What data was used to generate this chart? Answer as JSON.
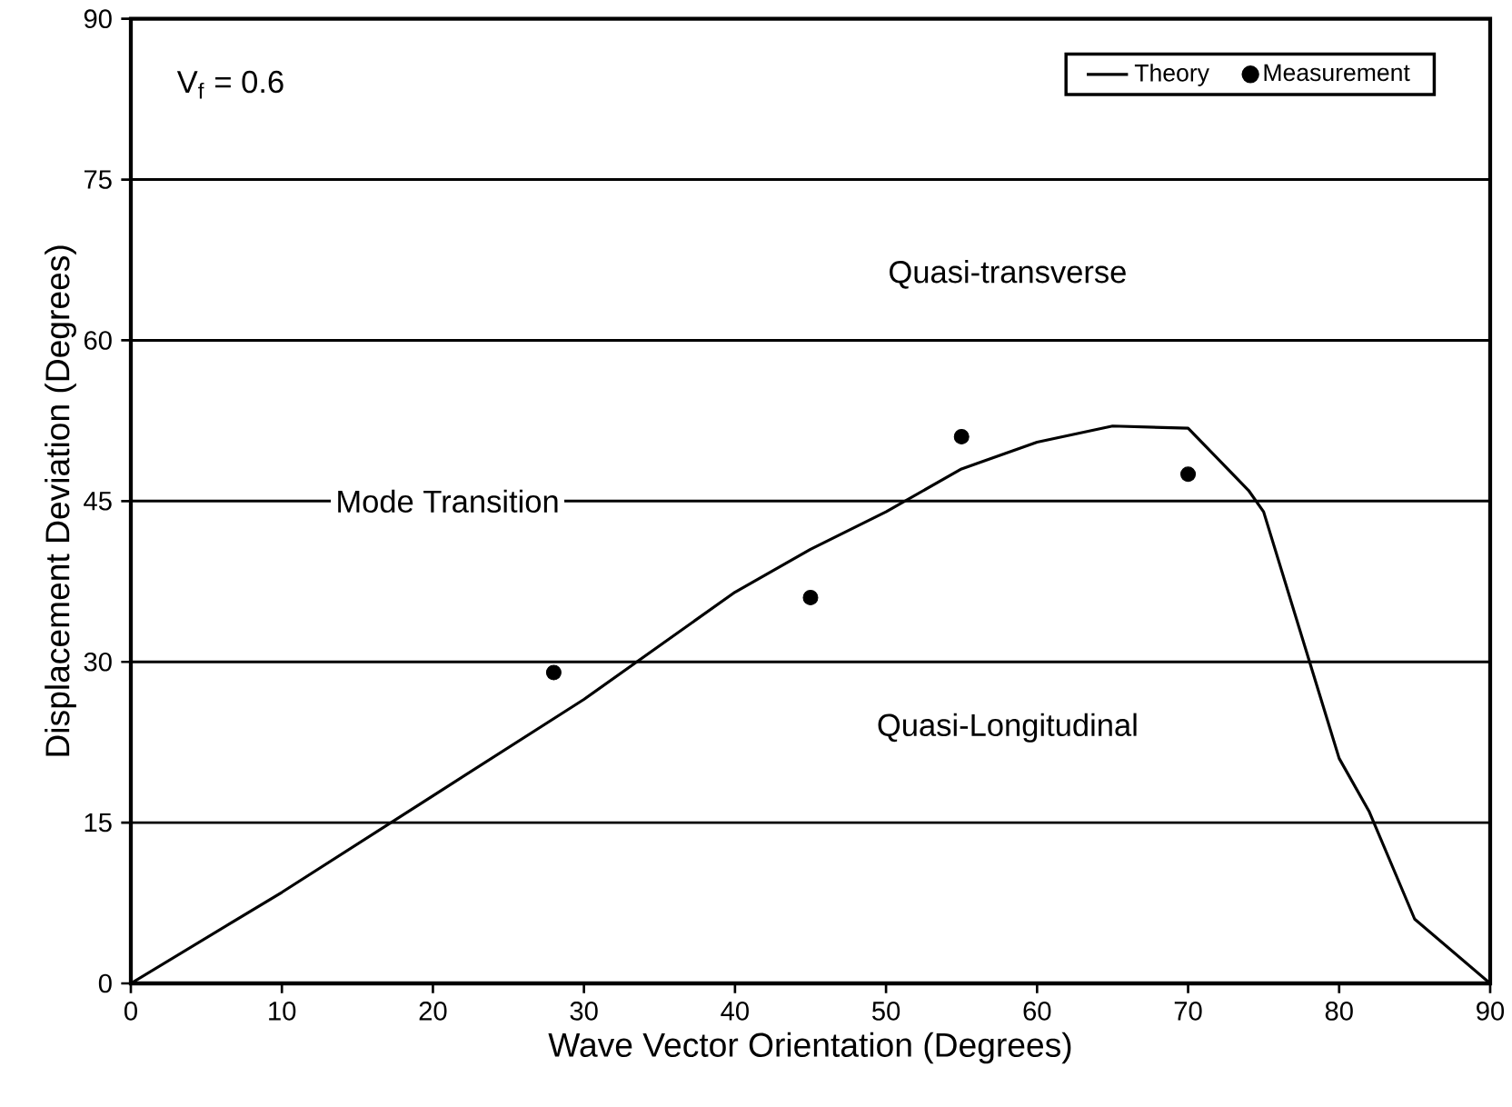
{
  "chart_data": {
    "type": "line",
    "xlabel": "Wave Vector Orientation (Degrees)",
    "ylabel": "Displacement Deviation (Degrees)",
    "xlim": [
      0,
      90
    ],
    "ylim": [
      0,
      90
    ],
    "xticks": [
      0,
      10,
      20,
      30,
      40,
      50,
      60,
      70,
      80,
      90
    ],
    "yticks": [
      0,
      15,
      30,
      45,
      60,
      75,
      90
    ],
    "grid": "y",
    "legend": "top right",
    "series": [
      {
        "name": "Theory",
        "color": "#000000",
        "x": [
          0,
          10,
          20,
          30,
          35,
          40,
          45,
          50,
          55,
          60,
          65,
          70,
          74,
          75,
          80,
          82,
          85,
          90
        ],
        "values": [
          0,
          8.5,
          17.5,
          26.5,
          31.5,
          36.5,
          40.5,
          44,
          48,
          50.5,
          52,
          51.8,
          46,
          44,
          21,
          16,
          6,
          0
        ]
      },
      {
        "name": "Measurement",
        "type": "scatter",
        "marker": "circle",
        "color": "#000000",
        "x": [
          28,
          45,
          55,
          70
        ],
        "values": [
          29,
          36,
          51,
          47.5
        ]
      }
    ],
    "annotations": [
      "V$_{f}$ = 0.6",
      "Quasi-transverse",
      "Quasi-Longitudinal",
      "Mode Transition"
    ]
  }
}
